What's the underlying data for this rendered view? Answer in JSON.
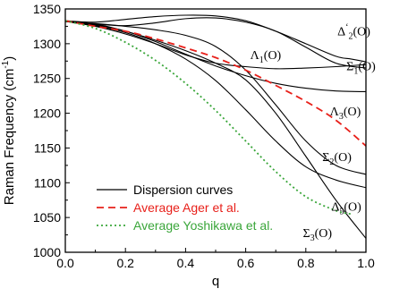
{
  "chart_data": {
    "type": "line",
    "xlabel": "q",
    "ylabel": "Raman Frequency (cm",
    "ylabel_sup": "-1",
    "ylabel_close": ")",
    "xlim": [
      0.0,
      1.0
    ],
    "ylim": [
      1000,
      1350
    ],
    "xticks": [
      "0.0",
      "0.2",
      "0.4",
      "0.6",
      "0.8",
      "1.0"
    ],
    "yticks": [
      "1000",
      "1050",
      "1100",
      "1150",
      "1200",
      "1250",
      "1300",
      "1350"
    ],
    "grid": false,
    "legend_position": "bottom-left",
    "legend": [
      {
        "label": "Dispersion curves",
        "color": "#000000",
        "style": "solid"
      },
      {
        "label": "Average Ager et al.",
        "color": "#e8201a",
        "style": "dashed"
      },
      {
        "label": "Average Yoshikawa et al.",
        "color": "#3aa63a",
        "style": "dotted"
      }
    ],
    "branch_labels": [
      {
        "name": "Δ",
        "sup": "‘",
        "sub": "2",
        "suffix": "(O)",
        "x": 0.905,
        "y": 1312
      },
      {
        "name": "Λ",
        "sub": "1",
        "suffix": "(O)",
        "x": 0.615,
        "y": 1278
      },
      {
        "name": "Σ",
        "sub": "1",
        "suffix": "(O)",
        "x": 0.935,
        "y": 1262
      },
      {
        "name": "Λ",
        "sub": "3",
        "suffix": "(O)",
        "x": 0.88,
        "y": 1197
      },
      {
        "name": "Σ",
        "sub": "2",
        "suffix": "(O)",
        "x": 0.855,
        "y": 1131
      },
      {
        "name": "Δ",
        "sub": "5",
        "suffix": "(O)",
        "x": 0.885,
        "y": 1060
      },
      {
        "name": "Σ",
        "sub": "3",
        "suffix": "(O)",
        "x": 0.79,
        "y": 1022
      }
    ],
    "series": [
      {
        "color": "#000000",
        "style": "solid",
        "x": [
          0,
          0.1,
          0.2,
          0.3,
          0.4,
          0.5,
          0.6,
          0.7,
          0.8,
          0.9,
          0.95,
          1.0
        ],
        "y": [
          1333,
          1331,
          1335,
          1339,
          1341,
          1340,
          1333,
          1318,
          1300,
          1282,
          1278,
          1274
        ]
      },
      {
        "color": "#000000",
        "style": "solid",
        "x": [
          0,
          0.1,
          0.2,
          0.3,
          0.4,
          0.5,
          0.6,
          0.7,
          0.8,
          0.9,
          1.0
        ],
        "y": [
          1332,
          1328,
          1326,
          1330,
          1336,
          1337,
          1331,
          1318,
          1295,
          1272,
          1265
        ]
      },
      {
        "color": "#000000",
        "style": "solid",
        "x": [
          0,
          0.1,
          0.2,
          0.3,
          0.4,
          0.5,
          0.6,
          0.7,
          0.8,
          0.9,
          1.0
        ],
        "y": [
          1332,
          1325,
          1314,
          1300,
          1284,
          1272,
          1267,
          1264,
          1265,
          1267,
          1270
        ]
      },
      {
        "color": "#000000",
        "style": "solid",
        "x": [
          0,
          0.1,
          0.2,
          0.3,
          0.4,
          0.5,
          0.6,
          0.7,
          0.8,
          0.9,
          1.0
        ],
        "y": [
          1332,
          1328,
          1318,
          1303,
          1285,
          1268,
          1254,
          1243,
          1236,
          1232,
          1231
        ]
      },
      {
        "color": "#000000",
        "style": "solid",
        "x": [
          0,
          0.1,
          0.2,
          0.3,
          0.4,
          0.5,
          0.6,
          0.7,
          0.8,
          0.9,
          1.0
        ],
        "y": [
          1332,
          1329,
          1325,
          1320,
          1312,
          1296,
          1262,
          1212,
          1160,
          1125,
          1112
        ]
      },
      {
        "color": "#000000",
        "style": "solid",
        "x": [
          0,
          0.1,
          0.2,
          0.3,
          0.4,
          0.5,
          0.6,
          0.7,
          0.8,
          0.9,
          1.0
        ],
        "y": [
          1332,
          1326,
          1316,
          1300,
          1278,
          1247,
          1205,
          1160,
          1123,
          1104,
          1093
        ]
      },
      {
        "color": "#000000",
        "style": "solid",
        "x": [
          0,
          0.1,
          0.2,
          0.3,
          0.4,
          0.5,
          0.6,
          0.7,
          0.8,
          0.9,
          1.0
        ],
        "y": [
          1332,
          1327,
          1318,
          1305,
          1290,
          1272,
          1248,
          1200,
          1138,
          1075,
          1020
        ]
      },
      {
        "name": "Average Ager et al.",
        "color": "#e8201a",
        "style": "dashed",
        "x": [
          0,
          0.1,
          0.2,
          0.3,
          0.4,
          0.5,
          0.6,
          0.7,
          0.8,
          0.9,
          1.0
        ],
        "y": [
          1333,
          1325,
          1318,
          1307,
          1294,
          1280,
          1262,
          1240,
          1217,
          1190,
          1153
        ]
      },
      {
        "name": "Average Yoshikawa et al.",
        "color": "#3aa63a",
        "style": "dotted",
        "x": [
          0,
          0.1,
          0.2,
          0.3,
          0.4,
          0.5,
          0.6,
          0.7,
          0.8,
          0.9,
          0.95
        ],
        "y": [
          1333,
          1322,
          1302,
          1276,
          1243,
          1204,
          1160,
          1116,
          1080,
          1060,
          1055
        ]
      }
    ]
  }
}
